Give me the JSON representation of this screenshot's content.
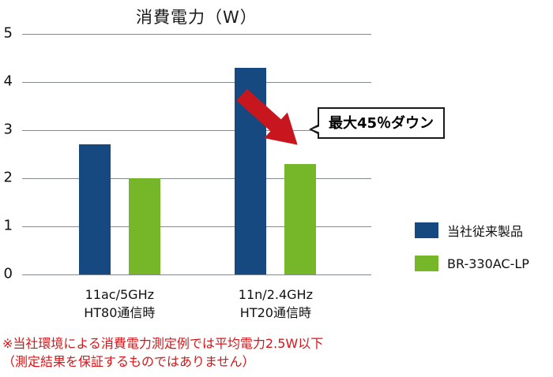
{
  "chart_data": {
    "type": "bar",
    "title": "消費電力（W）",
    "categories": [
      {
        "line1": "11ac/5GHz",
        "line2": "HT80通信時"
      },
      {
        "line1": "11n/2.4GHz",
        "line2": "HT20通信時"
      }
    ],
    "series": [
      {
        "name": "当社従来製品",
        "color": "#15497f",
        "values": [
          2.7,
          4.3
        ]
      },
      {
        "name": "BR-330AC-LP",
        "color": "#76b72a",
        "values": [
          2.0,
          2.3
        ]
      }
    ],
    "ylim": [
      0,
      5
    ],
    "yticks": [
      0,
      1,
      2,
      3,
      4,
      5
    ],
    "xlabel": "",
    "ylabel": "",
    "grid": true,
    "legend_position": "right"
  },
  "annotation": {
    "label": "最大45％ダウン",
    "arrow_color": "#c8161e"
  },
  "footnote": {
    "line1": "※当社環境による消費電力測定例では平均電力2.5W以下",
    "line2": "（測定結果を保証するものではありません）",
    "color": "#d61518"
  }
}
